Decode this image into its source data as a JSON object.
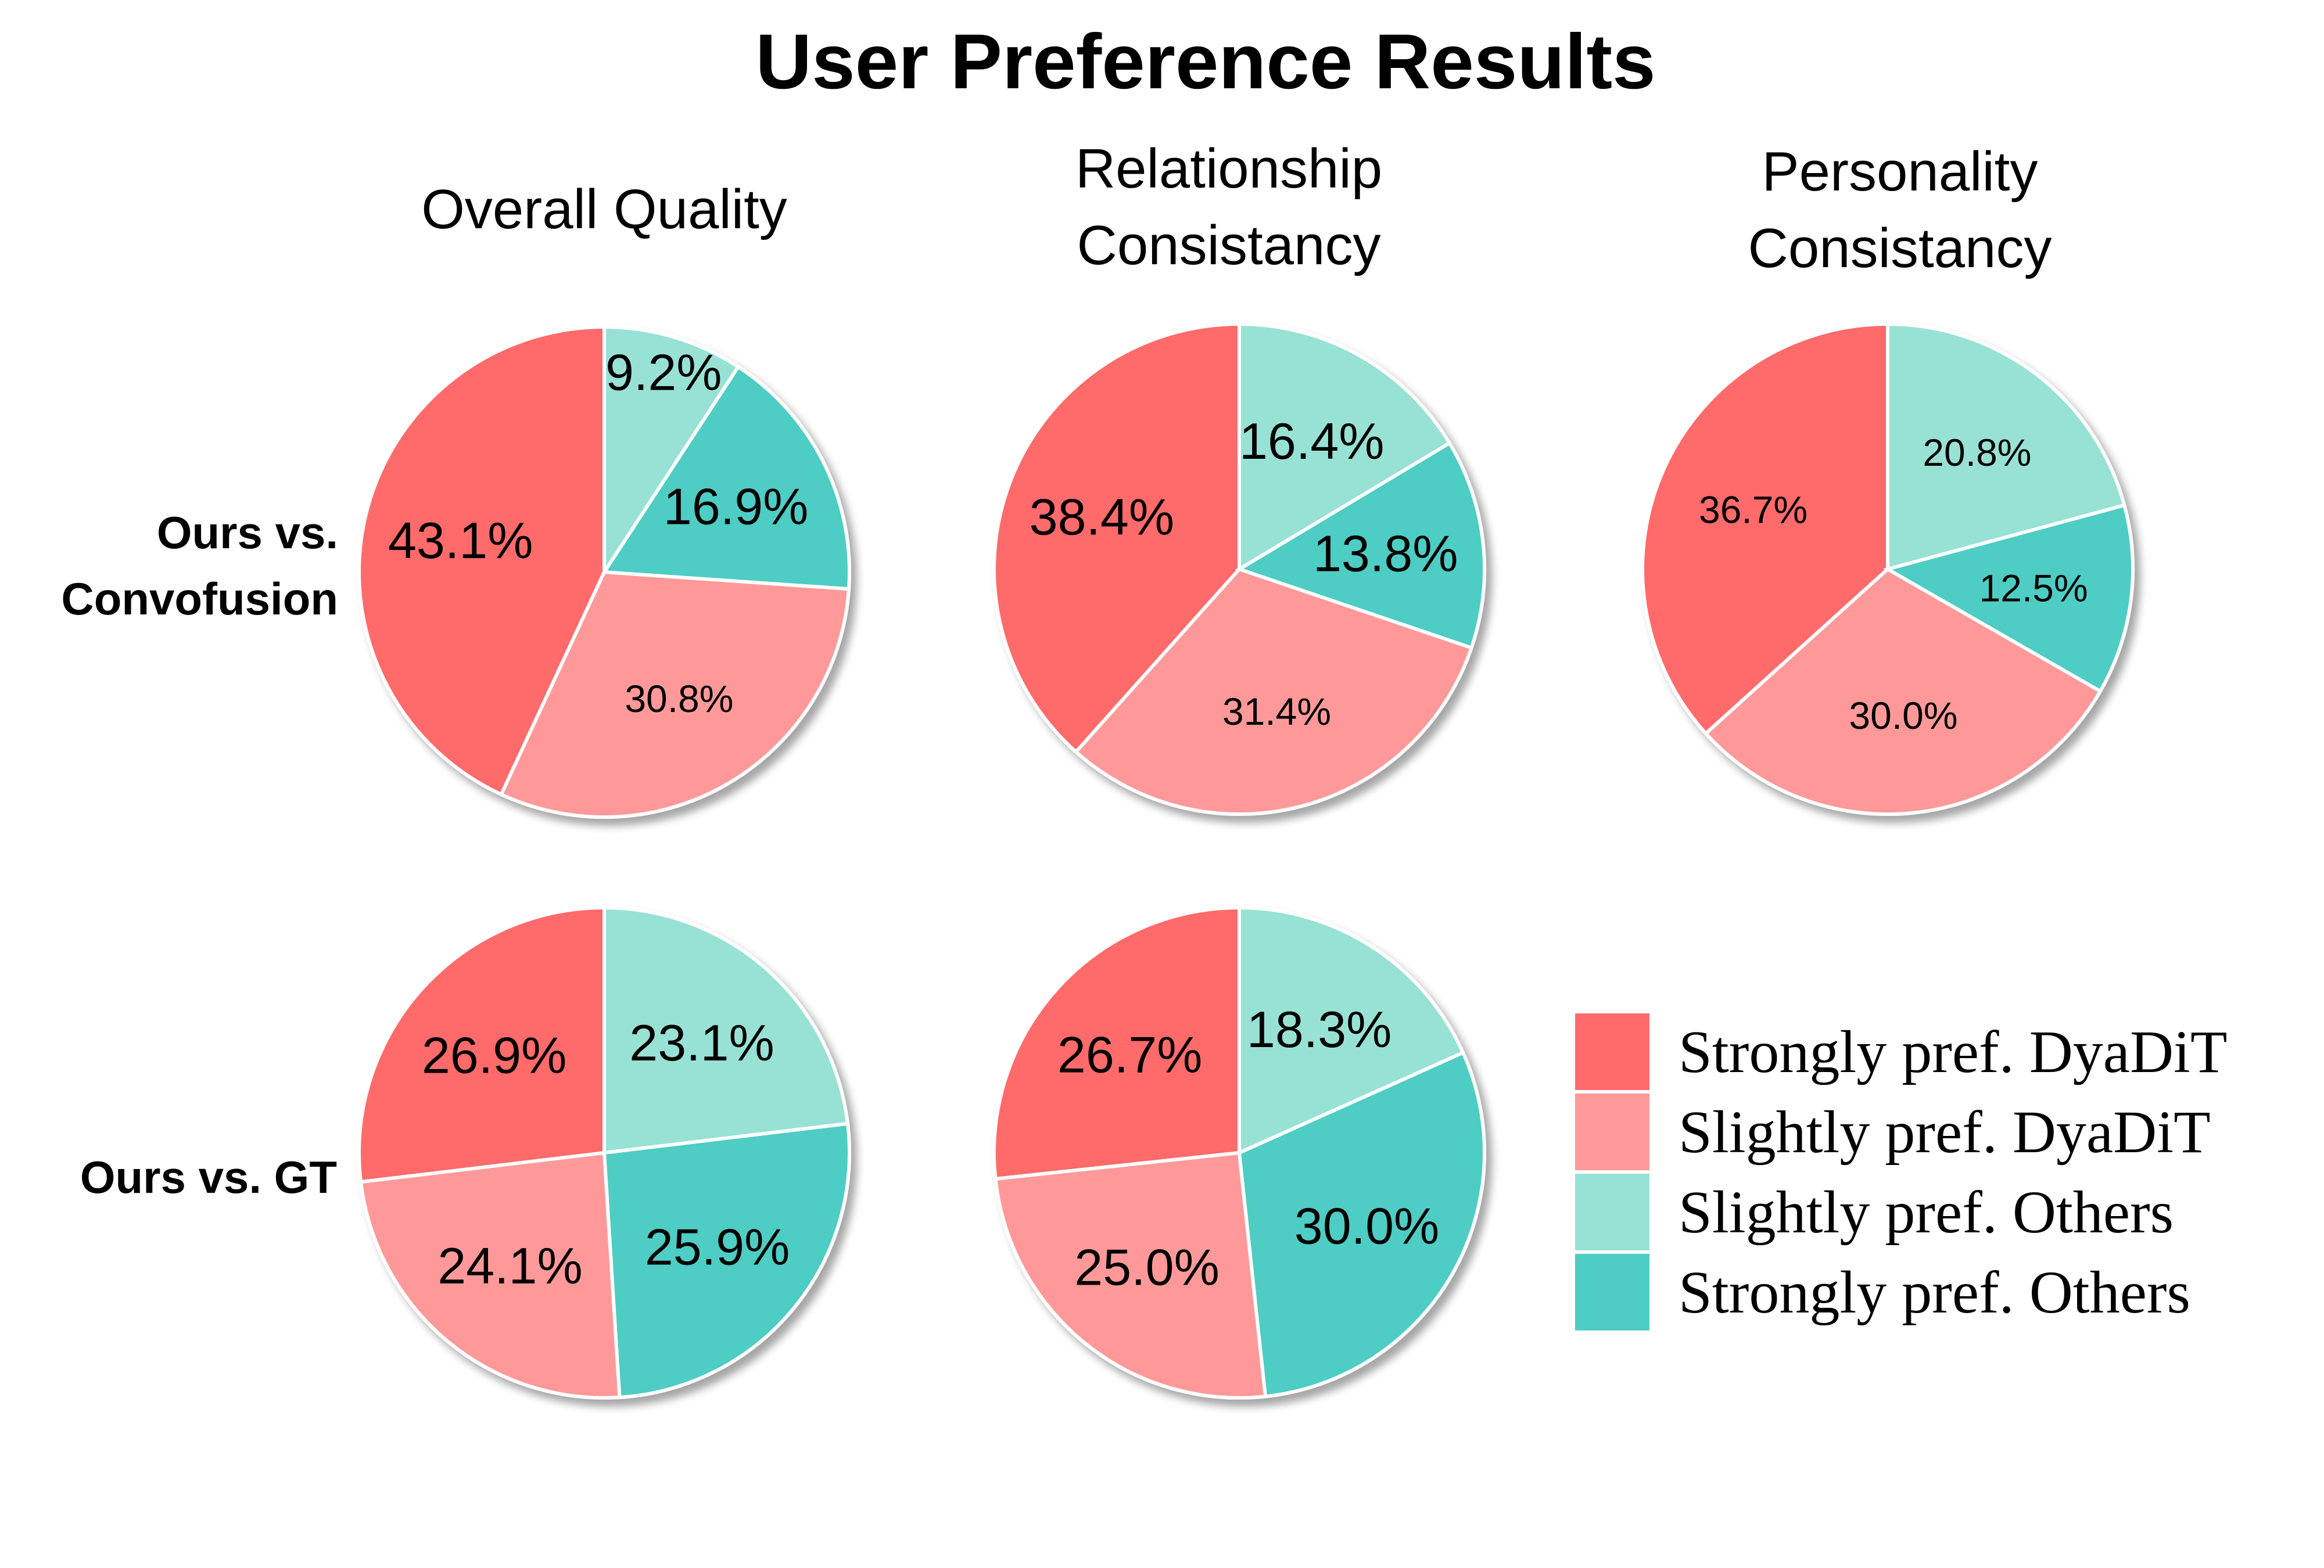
{
  "title": "User Preference Results",
  "chart_data": {
    "type": "pie",
    "title": "User Preference Results",
    "column_titles": [
      "Overall Quality",
      "Relationship\nConsistancy",
      "Personality\nConsistancy"
    ],
    "row_labels": [
      "Ours vs.\nConvofusion",
      "Ours vs. GT"
    ],
    "legend": {
      "placement": "bottom-right",
      "entries": [
        {
          "label": "Strongly pref. DyaDiT",
          "color": "#FF6B6B"
        },
        {
          "label": "Slightly pref. DyaDiT",
          "color": "#FF9999"
        },
        {
          "label": "Slightly pref. Others",
          "color": "#98E2D5"
        },
        {
          "label": "Strongly pref. Others",
          "color": "#4ECDC4"
        }
      ]
    },
    "slice_order": [
      "Strongly pref. DyaDiT",
      "Slightly pref. DyaDiT",
      "Strongly pref. Others",
      "Slightly pref. Others"
    ],
    "start_angle_deg": 90,
    "direction": "counterclockwise",
    "pies": [
      {
        "row": "Ours vs.\nConvofusion",
        "column": "Overall Quality",
        "values": [
          43.1,
          30.8,
          16.9,
          9.2
        ],
        "labels": [
          "43.1%",
          "30.8%",
          "16.9%",
          "9.2%"
        ]
      },
      {
        "row": "Ours vs.\nConvofusion",
        "column": "Relationship\nConsistancy",
        "values": [
          38.4,
          31.4,
          13.8,
          16.4
        ],
        "labels": [
          "38.4%",
          "31.4%",
          "13.8%",
          "16.4%"
        ]
      },
      {
        "row": "Ours vs.\nConvofusion",
        "column": "Personality\nConsistancy",
        "values": [
          36.7,
          30.0,
          12.5,
          20.8
        ],
        "labels": [
          "36.7%",
          "30.0%",
          "12.5%",
          "20.8%"
        ]
      },
      {
        "row": "Ours vs. GT",
        "column": "Overall Quality",
        "values": [
          26.9,
          24.1,
          25.9,
          23.1
        ],
        "labels": [
          "26.9%",
          "24.1%",
          "25.9%",
          "23.1%"
        ]
      },
      {
        "row": "Ours vs. GT",
        "column": "Relationship\nConsistancy",
        "values": [
          26.7,
          25.0,
          30.0,
          18.3
        ],
        "labels": [
          "26.7%",
          "25.0%",
          "30.0%",
          "18.3%"
        ]
      }
    ]
  }
}
